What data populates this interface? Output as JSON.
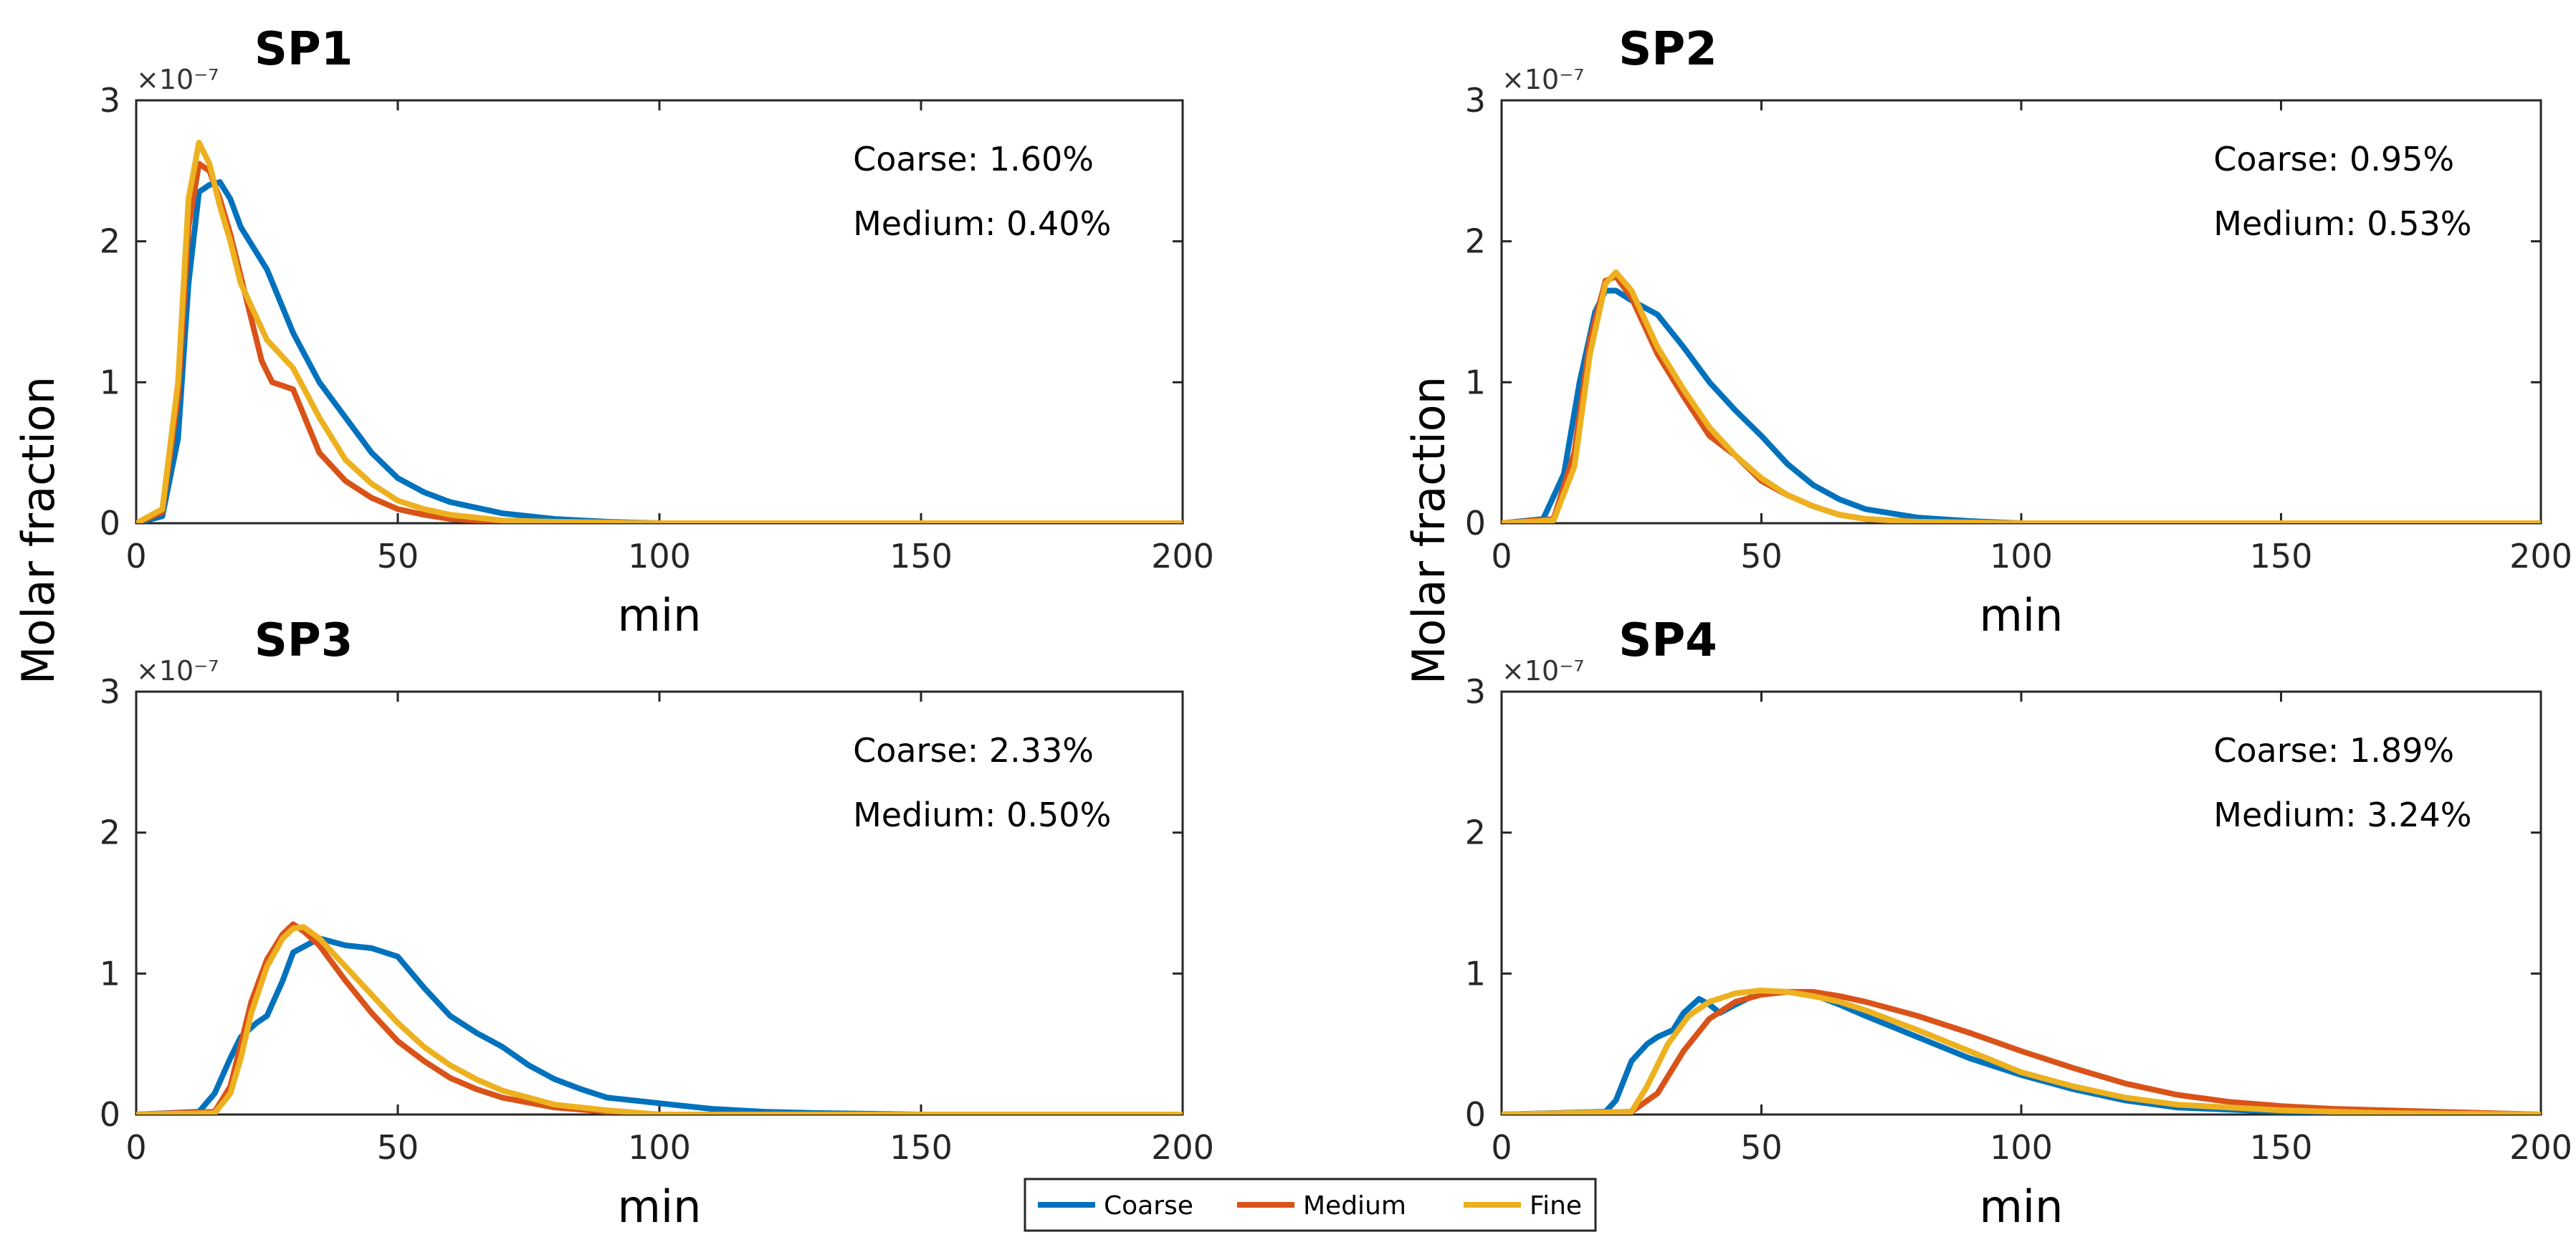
{
  "colors": {
    "coarse": "#0072BD",
    "medium": "#D95319",
    "fine": "#EDB120",
    "axis": "#262626"
  },
  "legend": {
    "entries": [
      "Coarse",
      "Medium",
      "Fine"
    ]
  },
  "ylabel_left": "Molar fraction",
  "ylabel_right": "Molar fraction",
  "chart_data": [
    {
      "type": "line",
      "title": "SP1",
      "xlabel": "min",
      "ylabel": "Molar fraction",
      "exponent_label": "×10⁻⁷",
      "xlim": [
        0,
        200
      ],
      "ylim": [
        0,
        3
      ],
      "xticks": [
        0,
        50,
        100,
        150,
        200
      ],
      "yticks": [
        0,
        1,
        2,
        3
      ],
      "annotations": [
        "Coarse: 1.60%",
        "Medium: 0.40%"
      ],
      "series": [
        {
          "name": "Coarse",
          "x": [
            0,
            5,
            8,
            10,
            12,
            14,
            16,
            18,
            20,
            25,
            30,
            35,
            40,
            45,
            50,
            55,
            60,
            70,
            80,
            90,
            100,
            150,
            200
          ],
          "y": [
            0,
            0.05,
            0.6,
            1.7,
            2.35,
            2.4,
            2.42,
            2.3,
            2.1,
            1.8,
            1.35,
            1.0,
            0.75,
            0.5,
            0.32,
            0.22,
            0.15,
            0.07,
            0.03,
            0.01,
            0,
            0,
            0
          ]
        },
        {
          "name": "Medium",
          "x": [
            0,
            5,
            8,
            10,
            12,
            14,
            16,
            18,
            20,
            24,
            26,
            30,
            35,
            40,
            45,
            50,
            55,
            60,
            70,
            80,
            100,
            150,
            200
          ],
          "y": [
            0,
            0.08,
            0.9,
            2.1,
            2.55,
            2.5,
            2.3,
            2.05,
            1.75,
            1.15,
            1.0,
            0.95,
            0.5,
            0.3,
            0.18,
            0.1,
            0.06,
            0.03,
            0.01,
            0,
            0,
            0,
            0
          ]
        },
        {
          "name": "Fine",
          "x": [
            0,
            5,
            8,
            10,
            12,
            14,
            16,
            18,
            20,
            25,
            30,
            35,
            40,
            45,
            50,
            55,
            60,
            70,
            80,
            100,
            150,
            200
          ],
          "y": [
            0,
            0.1,
            1.0,
            2.3,
            2.7,
            2.55,
            2.25,
            2.0,
            1.7,
            1.3,
            1.1,
            0.75,
            0.45,
            0.28,
            0.16,
            0.1,
            0.06,
            0.02,
            0.01,
            0,
            0,
            0
          ]
        }
      ]
    },
    {
      "type": "line",
      "title": "SP2",
      "xlabel": "min",
      "ylabel": "Molar fraction",
      "exponent_label": "×10⁻⁷",
      "xlim": [
        0,
        200
      ],
      "ylim": [
        0,
        3
      ],
      "xticks": [
        0,
        50,
        100,
        150,
        200
      ],
      "yticks": [
        0,
        1,
        2,
        3
      ],
      "annotations": [
        "Coarse: 0.95%",
        "Medium: 0.53%"
      ],
      "series": [
        {
          "name": "Coarse",
          "x": [
            0,
            8,
            12,
            15,
            18,
            20,
            22,
            25,
            30,
            35,
            40,
            45,
            50,
            55,
            60,
            65,
            70,
            80,
            90,
            100,
            150,
            200
          ],
          "y": [
            0,
            0.03,
            0.35,
            1.0,
            1.5,
            1.65,
            1.65,
            1.58,
            1.48,
            1.25,
            1.0,
            0.8,
            0.62,
            0.42,
            0.27,
            0.17,
            0.1,
            0.04,
            0.015,
            0,
            0,
            0
          ]
        },
        {
          "name": "Medium",
          "x": [
            0,
            10,
            14,
            17,
            20,
            22,
            25,
            30,
            35,
            40,
            45,
            50,
            55,
            60,
            65,
            70,
            80,
            100,
            150,
            200
          ],
          "y": [
            0,
            0.03,
            0.5,
            1.3,
            1.72,
            1.75,
            1.6,
            1.2,
            0.9,
            0.62,
            0.48,
            0.3,
            0.2,
            0.12,
            0.06,
            0.03,
            0.01,
            0,
            0,
            0
          ]
        },
        {
          "name": "Fine",
          "x": [
            0,
            10,
            14,
            17,
            20,
            22,
            25,
            30,
            35,
            40,
            45,
            50,
            55,
            60,
            65,
            70,
            80,
            100,
            150,
            200
          ],
          "y": [
            0,
            0.02,
            0.4,
            1.2,
            1.7,
            1.78,
            1.65,
            1.25,
            0.95,
            0.68,
            0.48,
            0.32,
            0.2,
            0.12,
            0.06,
            0.03,
            0.01,
            0,
            0,
            0
          ]
        }
      ]
    },
    {
      "type": "line",
      "title": "SP3",
      "xlabel": "min",
      "ylabel": "Molar fraction",
      "exponent_label": "×10⁻⁷",
      "xlim": [
        0,
        200
      ],
      "ylim": [
        0,
        3
      ],
      "xticks": [
        0,
        50,
        100,
        150,
        200
      ],
      "yticks": [
        0,
        1,
        2,
        3
      ],
      "annotations": [
        "Coarse: 2.33%",
        "Medium: 0.50%"
      ],
      "series": [
        {
          "name": "Coarse",
          "x": [
            0,
            12,
            15,
            18,
            20,
            23,
            25,
            28,
            30,
            35,
            40,
            45,
            50,
            55,
            60,
            65,
            70,
            75,
            80,
            85,
            90,
            95,
            100,
            110,
            120,
            130,
            150,
            200
          ],
          "y": [
            0,
            0.02,
            0.15,
            0.4,
            0.55,
            0.65,
            0.7,
            0.95,
            1.15,
            1.25,
            1.2,
            1.18,
            1.12,
            0.9,
            0.7,
            0.58,
            0.48,
            0.35,
            0.25,
            0.18,
            0.12,
            0.1,
            0.08,
            0.04,
            0.02,
            0.01,
            0,
            0
          ]
        },
        {
          "name": "Medium",
          "x": [
            0,
            15,
            18,
            20,
            22,
            25,
            28,
            30,
            32,
            35,
            40,
            45,
            50,
            55,
            60,
            65,
            70,
            80,
            90,
            100,
            150,
            200
          ],
          "y": [
            0,
            0.02,
            0.2,
            0.5,
            0.8,
            1.1,
            1.28,
            1.35,
            1.3,
            1.2,
            0.95,
            0.72,
            0.52,
            0.38,
            0.26,
            0.18,
            0.12,
            0.05,
            0.02,
            0,
            0,
            0
          ]
        },
        {
          "name": "Fine",
          "x": [
            0,
            15,
            18,
            20,
            22,
            25,
            28,
            30,
            32,
            35,
            40,
            45,
            50,
            55,
            60,
            65,
            70,
            80,
            90,
            100,
            150,
            200
          ],
          "y": [
            0,
            0.01,
            0.15,
            0.4,
            0.72,
            1.05,
            1.25,
            1.32,
            1.33,
            1.25,
            1.05,
            0.85,
            0.65,
            0.48,
            0.35,
            0.25,
            0.17,
            0.07,
            0.03,
            0,
            0,
            0
          ]
        }
      ]
    },
    {
      "type": "line",
      "title": "SP4",
      "xlabel": "min",
      "ylabel": "Molar fraction",
      "exponent_label": "×10⁻⁷",
      "xlim": [
        0,
        200
      ],
      "ylim": [
        0,
        3
      ],
      "xticks": [
        0,
        50,
        100,
        150,
        200
      ],
      "yticks": [
        0,
        1,
        2,
        3
      ],
      "annotations": [
        "Coarse: 1.89%",
        "Medium: 3.24%"
      ],
      "series": [
        {
          "name": "Coarse",
          "x": [
            0,
            20,
            22,
            25,
            28,
            30,
            33,
            35,
            38,
            40,
            42,
            45,
            50,
            55,
            60,
            65,
            70,
            80,
            90,
            100,
            110,
            120,
            130,
            150,
            170,
            200
          ],
          "y": [
            0,
            0.02,
            0.1,
            0.38,
            0.5,
            0.55,
            0.6,
            0.72,
            0.82,
            0.78,
            0.72,
            0.78,
            0.87,
            0.87,
            0.85,
            0.78,
            0.7,
            0.55,
            0.4,
            0.28,
            0.18,
            0.1,
            0.05,
            0.02,
            0.01,
            0
          ]
        },
        {
          "name": "Medium",
          "x": [
            0,
            25,
            30,
            35,
            40,
            45,
            50,
            55,
            60,
            65,
            70,
            80,
            90,
            100,
            110,
            120,
            130,
            140,
            150,
            160,
            170,
            180,
            200
          ],
          "y": [
            0,
            0.02,
            0.15,
            0.45,
            0.68,
            0.8,
            0.85,
            0.87,
            0.87,
            0.84,
            0.8,
            0.7,
            0.58,
            0.45,
            0.33,
            0.22,
            0.14,
            0.09,
            0.06,
            0.04,
            0.03,
            0.02,
            0
          ]
        },
        {
          "name": "Fine",
          "x": [
            0,
            25,
            28,
            32,
            36,
            40,
            45,
            50,
            55,
            60,
            65,
            70,
            80,
            90,
            100,
            110,
            120,
            130,
            150,
            170,
            200
          ],
          "y": [
            0,
            0.02,
            0.2,
            0.5,
            0.7,
            0.8,
            0.86,
            0.88,
            0.87,
            0.84,
            0.8,
            0.74,
            0.6,
            0.45,
            0.3,
            0.2,
            0.12,
            0.07,
            0.03,
            0.01,
            0
          ]
        }
      ]
    }
  ]
}
